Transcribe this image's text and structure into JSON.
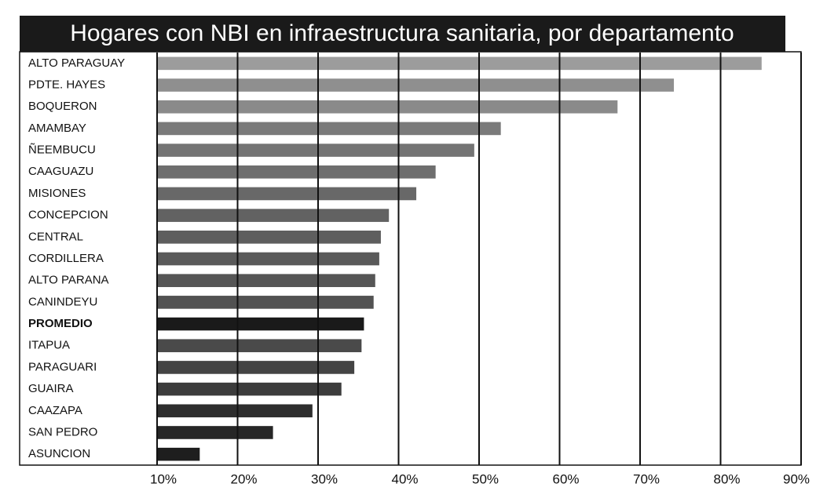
{
  "chart_data": {
    "type": "barh",
    "title": "Hogares con NBI en infraestructura sanitaria, por departamento",
    "categories": [
      "ALTO PARAGUAY",
      "PDTE. HAYES",
      "BOQUERON",
      "AMAMBAY",
      "ÑEEMBUCU",
      "CAAGUAZU",
      "MISIONES",
      "CONCEPCION",
      "CENTRAL",
      "CORDILLERA",
      "ALTO PARANA",
      "CANINDEYU",
      "PROMEDIO",
      "ITAPUA",
      "PARAGUARI",
      "GUAIRA",
      "CAAZAPA",
      "SAN PEDRO",
      "ASUNCION"
    ],
    "values": [
      85.1,
      74.2,
      67.2,
      52.7,
      49.4,
      44.6,
      42.2,
      38.8,
      37.8,
      37.6,
      37.1,
      36.9,
      35.7,
      35.4,
      34.5,
      32.9,
      29.3,
      24.4,
      15.3
    ],
    "colors": [
      "#9c9c9c",
      "#8f8f8f",
      "#8a8a8a",
      "#7a7a7a",
      "#747474",
      "#6e6e6e",
      "#686868",
      "#626262",
      "#5e5e5e",
      "#5a5a5a",
      "#565656",
      "#525252",
      "#1a1a1a",
      "#4a4a4a",
      "#444444",
      "#3c3c3c",
      "#2e2e2e",
      "#262626",
      "#1e1e1e"
    ],
    "highlight": 12,
    "xlim": [
      10,
      90
    ],
    "xticks": [
      {
        "value": 10,
        "label": "10%"
      },
      {
        "value": 20,
        "label": "20%"
      },
      {
        "value": 30,
        "label": "30%"
      },
      {
        "value": 40,
        "label": "40%"
      },
      {
        "value": 50,
        "label": "50%"
      },
      {
        "value": 60,
        "label": "60%"
      },
      {
        "value": 70,
        "label": "70%"
      },
      {
        "value": 80,
        "label": "80%"
      },
      {
        "value": 90,
        "label": "90%"
      }
    ],
    "grid": true
  }
}
